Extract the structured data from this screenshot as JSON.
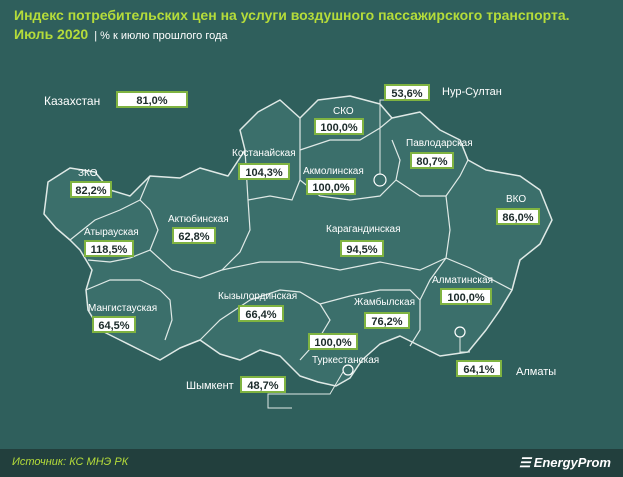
{
  "title": {
    "line1": "Индекс потребительских цен на услуги воздушного пассажирского транспорта.",
    "line2": "Июль 2020",
    "subtitle": "| % к июлю прошлого года"
  },
  "country": {
    "name": "Казахстан",
    "value": "81,0%"
  },
  "regions": [
    {
      "name": "ЗКО",
      "value": "82,2%"
    },
    {
      "name": "Атырауская",
      "value": "118,5%"
    },
    {
      "name": "Мангистауская",
      "value": "64,5%"
    },
    {
      "name": "Актюбинская",
      "value": "62,8%"
    },
    {
      "name": "Костанайская",
      "value": "104,3%"
    },
    {
      "name": "СКО",
      "value": "100,0%"
    },
    {
      "name": "Акмолинская",
      "value": "100,0%"
    },
    {
      "name": "Павлодарская",
      "value": "80,7%"
    },
    {
      "name": "ВКО",
      "value": "86,0%"
    },
    {
      "name": "Карагандинская",
      "value": "94,5%"
    },
    {
      "name": "Кызылординская",
      "value": "66,4%"
    },
    {
      "name": "Жамбылская",
      "value": "76,2%"
    },
    {
      "name": "Алматинская",
      "value": "100,0%"
    },
    {
      "name": "Туркестанская",
      "value": "100,0%"
    }
  ],
  "cities": [
    {
      "name": "Нур-Султан",
      "value": "53,6%"
    },
    {
      "name": "Алматы",
      "value": "64,1%"
    },
    {
      "name": "Шымкент",
      "value": "48,7%"
    }
  ],
  "footer": {
    "source": "Источник: КС МНЭ РК",
    "brand": "EnergyProm"
  },
  "colors": {
    "background": "#2f5f5c",
    "map_fill": "#3b6f6b",
    "border": "#dfe9e6",
    "accent": "#b5dc3a",
    "box_border": "#7fb341"
  }
}
